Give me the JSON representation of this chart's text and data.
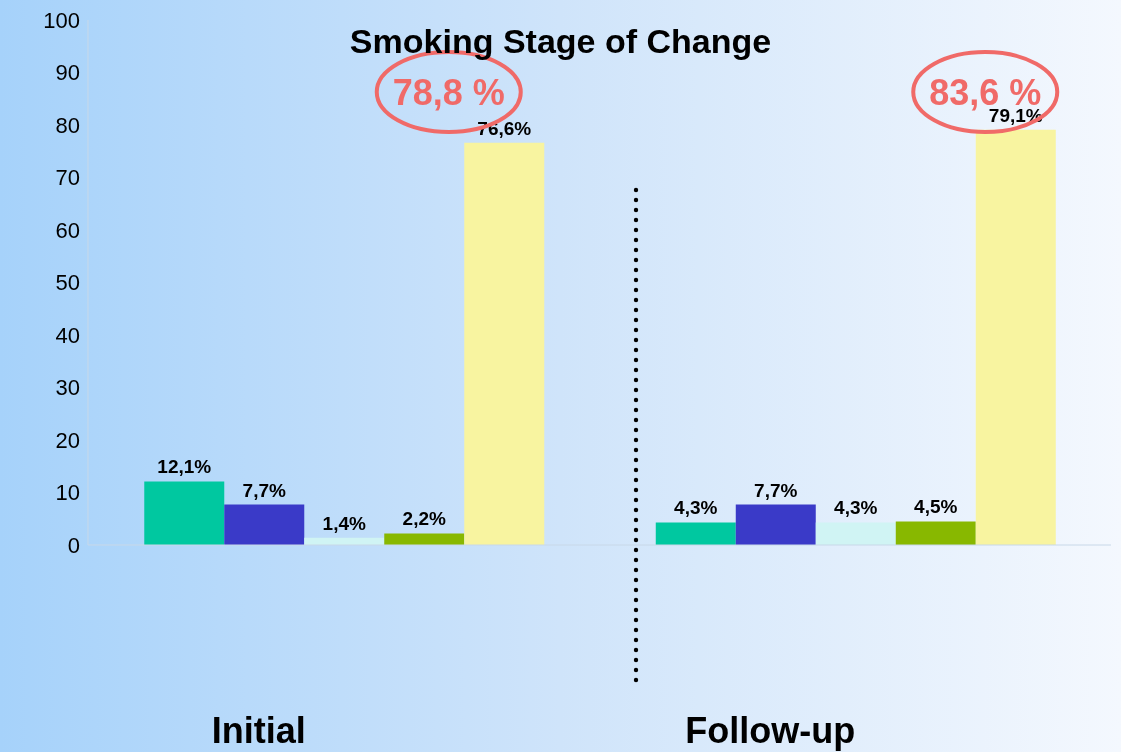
{
  "chart_data": {
    "type": "bar",
    "title": "Smoking Stage of Change",
    "categories": [
      "Initial",
      "Follow-up"
    ],
    "series": [
      {
        "color": "#00c8a0",
        "values": [
          12.1,
          4.3
        ],
        "value_labels": [
          "12,1%",
          "4,3%"
        ]
      },
      {
        "color": "#3a3ac8",
        "values": [
          7.7,
          7.7
        ],
        "value_labels": [
          "7,7%",
          "7,7%"
        ]
      },
      {
        "color": "#d0f4f4",
        "values": [
          1.4,
          4.3
        ],
        "value_labels": [
          "1,4%",
          "4,3%"
        ]
      },
      {
        "color": "#88b800",
        "values": [
          2.2,
          4.5
        ],
        "value_labels": [
          "2,2%",
          "4,5%"
        ]
      },
      {
        "color": "#f8f4a0",
        "values": [
          76.6,
          79.1
        ],
        "value_labels": [
          "76,6%",
          "79,1%"
        ]
      }
    ],
    "annotations": [
      "78,8 %",
      "83,6 %"
    ],
    "ylim": [
      0,
      100
    ],
    "yticks": [
      0,
      10,
      20,
      30,
      40,
      50,
      60,
      70,
      80,
      90,
      100
    ],
    "grid": false,
    "legend": false
  }
}
